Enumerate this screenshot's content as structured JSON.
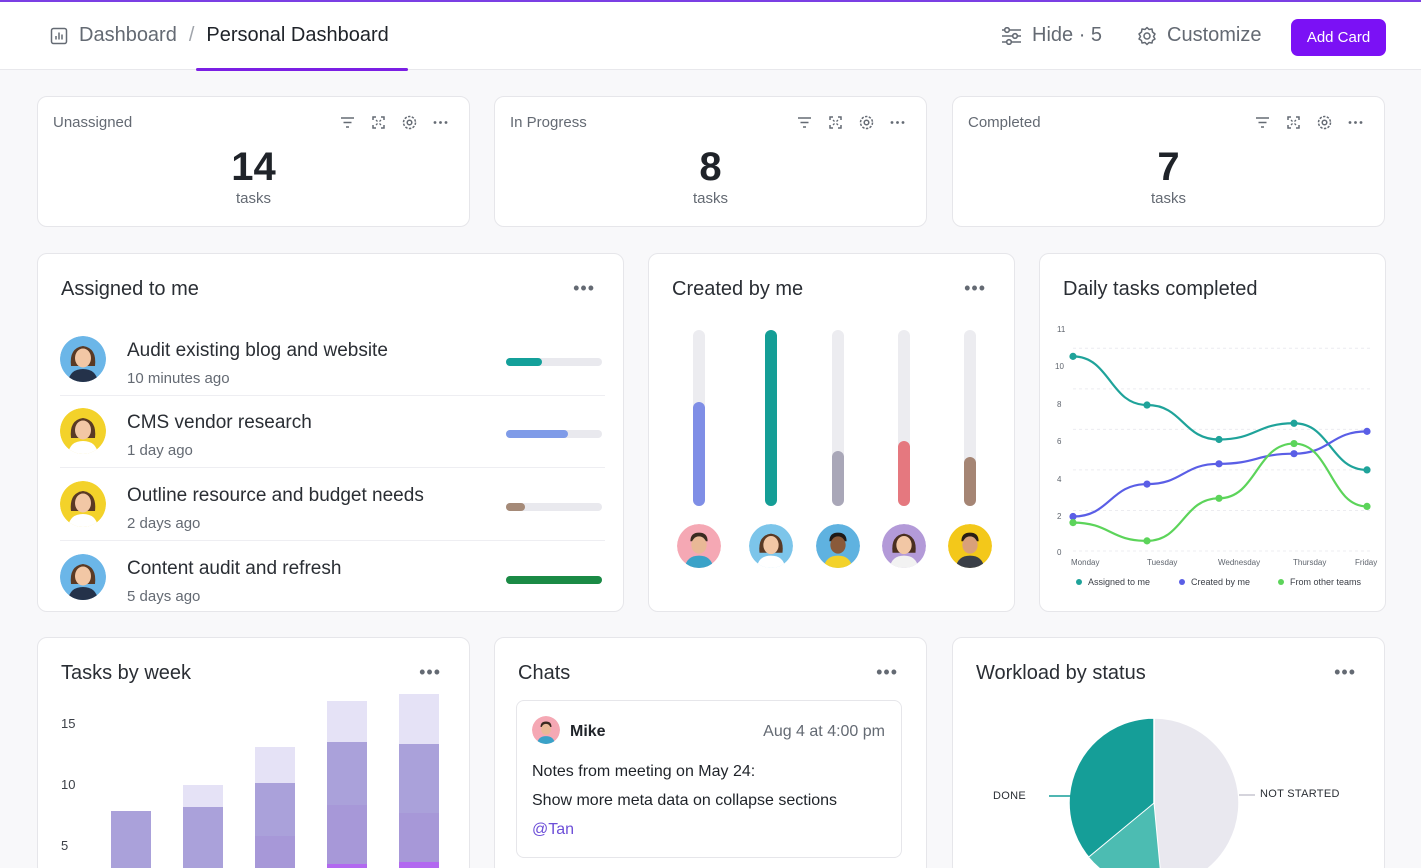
{
  "header": {
    "breadcrumb": [
      "Dashboard",
      "Personal Dashboard"
    ],
    "hide_label": "Hide · 5",
    "customize_label": "Customize",
    "add_card_label": "Add Card"
  },
  "stats": [
    {
      "title": "Unassigned",
      "value": "14",
      "unit": "tasks"
    },
    {
      "title": "In Progress",
      "value": "8",
      "unit": "tasks"
    },
    {
      "title": "Completed",
      "value": "7",
      "unit": "tasks"
    }
  ],
  "assigned": {
    "title": "Assigned to me",
    "tasks": [
      {
        "name": "Audit existing blog and website",
        "time": "10 minutes ago",
        "progress": 0.38,
        "color": "#14a09a"
      },
      {
        "name": " CMS vendor research",
        "time": "1 day ago",
        "progress": 0.65,
        "color": "#7f9be8"
      },
      {
        "name": "Outline resource and budget needs",
        "time": "2 days ago",
        "progress": 0.2,
        "color": "#a58a78"
      },
      {
        "name": "Content audit and refresh",
        "time": "5 days ago",
        "progress": 1.0,
        "color": "#1a8a45"
      }
    ]
  },
  "created": {
    "title": "Created by me",
    "bars": [
      {
        "fill": 0.59,
        "color": "#7f8ee6"
      },
      {
        "fill": 1.0,
        "color": "#149e96"
      },
      {
        "fill": 0.31,
        "color": "#a9a7b8"
      },
      {
        "fill": 0.37,
        "color": "#e5787f"
      },
      {
        "fill": 0.28,
        "color": "#a58574"
      }
    ]
  },
  "daily": {
    "title": "Daily tasks completed",
    "y_ticks": [
      "11",
      "10",
      "8",
      "6",
      "4",
      "2",
      "0"
    ],
    "days": [
      "Monday",
      "Tuesday",
      "Wednesday",
      "Thursday",
      "Friday"
    ],
    "legend": [
      "Assigned to me",
      "Created by me",
      "From other teams"
    ],
    "colors": [
      "#1fa39a",
      "#5a5ee6",
      "#5cd45a"
    ]
  },
  "chart_data": [
    {
      "type": "line",
      "title": "Daily tasks completed",
      "x": [
        "Monday",
        "Tuesday",
        "Wednesday",
        "Thursday",
        "Friday"
      ],
      "ylim": [
        0,
        11
      ],
      "series": [
        {
          "name": "Assigned to me",
          "values": [
            9.6,
            7.2,
            5.5,
            6.3,
            4.0
          ]
        },
        {
          "name": "Created by me",
          "values": [
            1.7,
            3.3,
            4.3,
            4.8,
            5.9
          ]
        },
        {
          "name": "From other teams",
          "values": [
            1.4,
            0.5,
            2.6,
            5.3,
            2.2
          ]
        }
      ]
    },
    {
      "type": "bar",
      "title": "Tasks by week",
      "y_ticks": [
        "15",
        "10",
        "5"
      ],
      "categories": [
        "",
        "",
        "",
        "",
        ""
      ],
      "series": [
        {
          "values": [
            0.5,
            0.5,
            2.7,
            3.0,
            3.2
          ],
          "color": "#b268f0"
        },
        {
          "values": [
            1.6,
            1.5,
            2.6,
            4.9,
            4.0
          ],
          "color": "#a798d8"
        },
        {
          "values": [
            5.3,
            5.7,
            4.4,
            5.1,
            5.7
          ],
          "color": "#aaa1da"
        },
        {
          "values": [
            0.0,
            1.8,
            2.9,
            3.4,
            4.1
          ],
          "color": "#e5e2f6"
        }
      ]
    },
    {
      "type": "pie",
      "title": "Workload by status",
      "labels": [
        "DONE",
        "NOT STARTED"
      ],
      "values": [
        47,
        53
      ],
      "colors": [
        "#159e98",
        "#e9e8ef"
      ]
    }
  ],
  "weekly": {
    "title": "Tasks by week",
    "y_ticks": [
      "15",
      "10",
      "5"
    ]
  },
  "chats": {
    "title": "Chats",
    "author": "Mike",
    "time": "Aug 4 at 4:00 pm",
    "lines": [
      "Notes from meeting on May 24:",
      "Show more meta data on collapse sections"
    ],
    "mention": "@Tan"
  },
  "workload": {
    "title": "Workload by status",
    "done_label": "DONE",
    "not_started_label": "NOT STARTED"
  }
}
